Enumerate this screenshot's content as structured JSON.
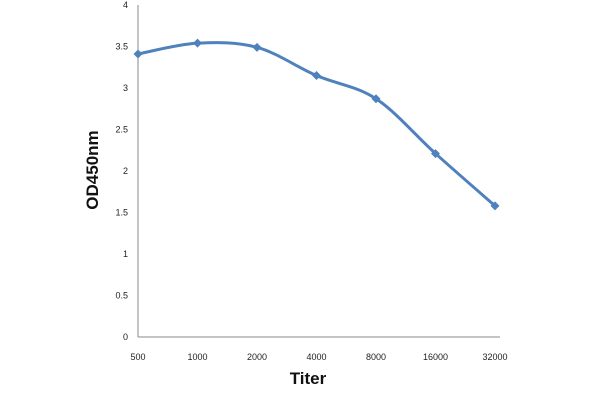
{
  "chart_data": {
    "type": "line",
    "title": "",
    "xlabel": "Titer",
    "ylabel": "OD450nm",
    "categories": [
      "500",
      "1000",
      "2000",
      "4000",
      "8000",
      "16000",
      "32000"
    ],
    "series": [
      {
        "values": [
          3.41,
          3.54,
          3.49,
          3.15,
          2.87,
          2.21,
          1.58
        ]
      }
    ],
    "ylim": [
      0,
      4
    ],
    "yticks": [
      "0",
      "0.5",
      "1",
      "1.5",
      "2",
      "2.5",
      "3",
      "3.5",
      "4"
    ],
    "grid": false,
    "legend": "none",
    "line_color": "#4F81BD",
    "marker": "diamond"
  }
}
